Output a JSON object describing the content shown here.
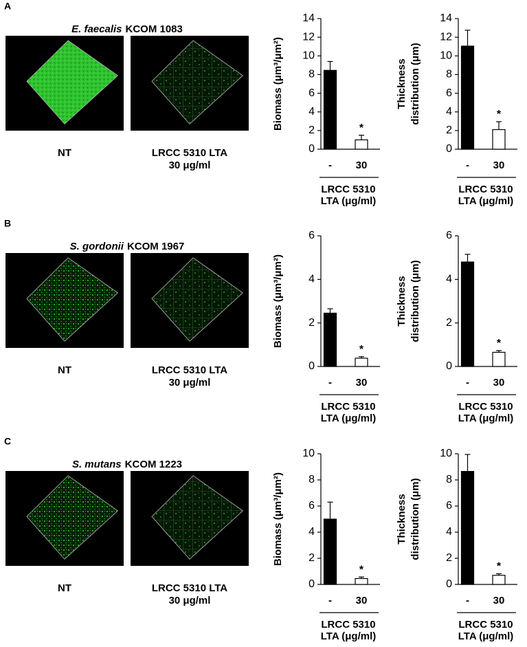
{
  "panels": [
    {
      "letter": "A",
      "title_italic": "E. faecalis",
      "title_rest": "KCOM 1083",
      "image_labels": [
        [
          "NT"
        ],
        [
          "LRCC 5310 LTA",
          "30 μg/ml"
        ]
      ]
    },
    {
      "letter": "B",
      "title_italic": "S. gordonii",
      "title_rest": "KCOM 1967",
      "image_labels": [
        [
          "NT"
        ],
        [
          "LRCC 5310 LTA",
          "30 μg/ml"
        ]
      ]
    },
    {
      "letter": "C",
      "title_italic": "S. mutans",
      "title_rest": "KCOM 1223",
      "image_labels": [
        [
          "NT"
        ],
        [
          "LRCC 5310 LTA",
          "30 μg/ml"
        ]
      ]
    }
  ],
  "chart_data": [
    {
      "type": "bar",
      "ylabel": [
        "Biomass (μm³/μm²)"
      ],
      "categories": [
        "-",
        "30"
      ],
      "values": [
        8.45,
        1.0
      ],
      "errors": [
        0.95,
        0.5
      ],
      "colors": [
        "#000000",
        "#ffffff"
      ],
      "xlabel": [
        "LRCC 5310",
        "LTA (μg/ml)"
      ],
      "annotation": {
        "text": "*",
        "category": "30"
      },
      "ylim": [
        0,
        14
      ],
      "yticks": [
        0,
        2,
        4,
        6,
        8,
        10,
        12,
        14
      ]
    },
    {
      "type": "bar",
      "ylabel": [
        "Thickness",
        "distribution (μm)"
      ],
      "categories": [
        "-",
        "30"
      ],
      "values": [
        11.05,
        2.1
      ],
      "errors": [
        1.7,
        0.85
      ],
      "colors": [
        "#000000",
        "#ffffff"
      ],
      "xlabel": [
        "LRCC 5310",
        "LTA (μg/ml)"
      ],
      "annotation": {
        "text": "*",
        "category": "30"
      },
      "ylim": [
        0,
        14
      ],
      "yticks": [
        0,
        2,
        4,
        6,
        8,
        10,
        12,
        14
      ]
    },
    {
      "type": "bar",
      "ylabel": [
        "Biomass (μm³/μm²)"
      ],
      "categories": [
        "-",
        "30"
      ],
      "values": [
        2.45,
        0.38
      ],
      "errors": [
        0.2,
        0.07
      ],
      "colors": [
        "#000000",
        "#ffffff"
      ],
      "xlabel": [
        "LRCC 5310",
        "LTA (μg/ml)"
      ],
      "annotation": {
        "text": "*",
        "category": "30"
      },
      "ylim": [
        0,
        6
      ],
      "yticks": [
        0,
        2,
        4,
        6
      ]
    },
    {
      "type": "bar",
      "ylabel": [
        "Thickness",
        "distribution (μm)"
      ],
      "categories": [
        "-",
        "30"
      ],
      "values": [
        4.8,
        0.65
      ],
      "errors": [
        0.35,
        0.08
      ],
      "colors": [
        "#000000",
        "#ffffff"
      ],
      "xlabel": [
        "LRCC 5310",
        "LTA (μg/ml)"
      ],
      "annotation": {
        "text": "*",
        "category": "30"
      },
      "ylim": [
        0,
        6
      ],
      "yticks": [
        0,
        2,
        4,
        6
      ]
    },
    {
      "type": "bar",
      "ylabel": [
        "Biomass (μm³/μm²)"
      ],
      "categories": [
        "-",
        "30"
      ],
      "values": [
        5.0,
        0.45
      ],
      "errors": [
        1.3,
        0.12
      ],
      "colors": [
        "#000000",
        "#ffffff"
      ],
      "xlabel": [
        "LRCC 5310",
        "LTA (μg/ml)"
      ],
      "annotation": {
        "text": "*",
        "category": "30"
      },
      "ylim": [
        0,
        10
      ],
      "yticks": [
        0,
        2,
        4,
        6,
        8,
        10
      ]
    },
    {
      "type": "bar",
      "ylabel": [
        "Thickness",
        "distribution (μm)"
      ],
      "categories": [
        "-",
        "30"
      ],
      "values": [
        8.65,
        0.7
      ],
      "errors": [
        1.3,
        0.12
      ],
      "colors": [
        "#000000",
        "#ffffff"
      ],
      "xlabel": [
        "LRCC 5310",
        "LTA (μg/ml)"
      ],
      "annotation": {
        "text": "*",
        "category": "30"
      },
      "ylim": [
        0,
        10
      ],
      "yticks": [
        0,
        2,
        4,
        6,
        8,
        10
      ]
    }
  ]
}
